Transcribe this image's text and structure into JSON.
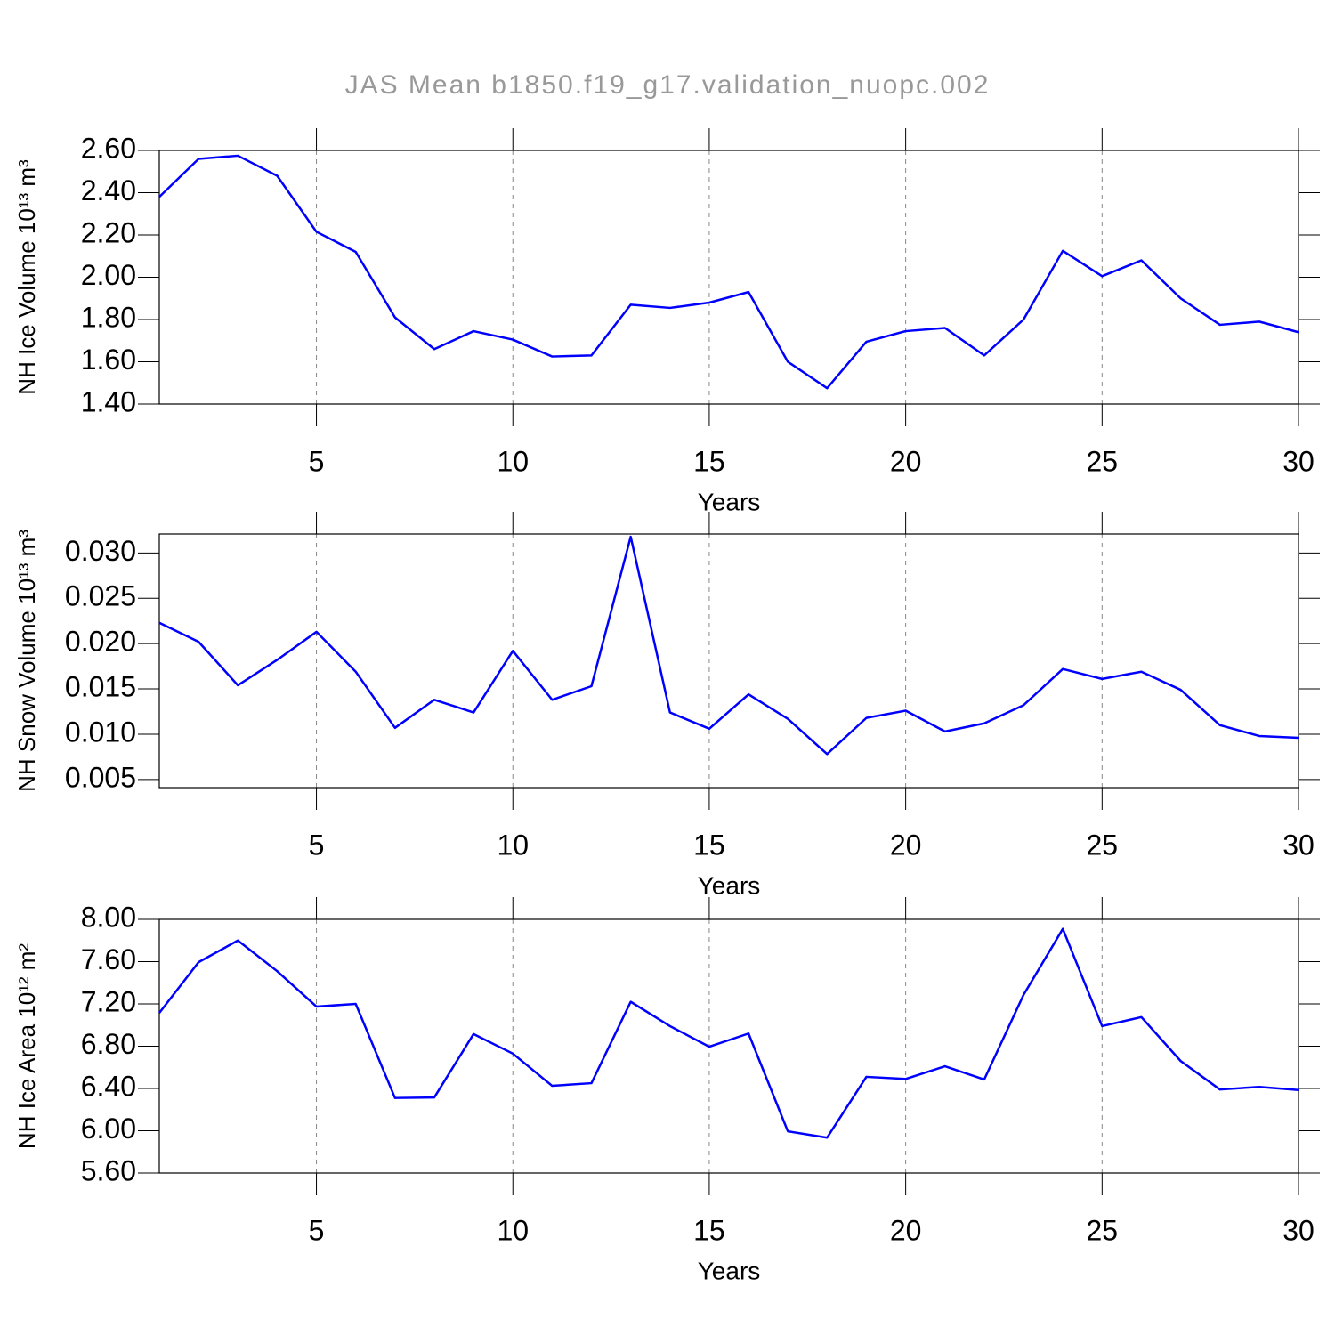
{
  "title": "JAS Mean b1850.f19_g17.validation_nuopc.002",
  "chart_data": [
    {
      "type": "line",
      "ylabel": "NH Ice Volume 10¹³ m³",
      "xlabel": "Years",
      "x": [
        1,
        2,
        3,
        4,
        5,
        6,
        7,
        8,
        9,
        10,
        11,
        12,
        13,
        14,
        15,
        16,
        17,
        18,
        19,
        20,
        21,
        22,
        23,
        24,
        25,
        26,
        27,
        28,
        29,
        30
      ],
      "series": [
        {
          "color": "#0000ff",
          "values": [
            2.38,
            2.56,
            2.575,
            2.48,
            2.215,
            2.12,
            1.81,
            1.66,
            1.745,
            1.705,
            1.625,
            1.63,
            1.87,
            1.855,
            1.88,
            1.93,
            1.6,
            1.475,
            1.695,
            1.745,
            1.76,
            1.63,
            1.8,
            2.125,
            2.005,
            2.08,
            1.9,
            1.775,
            1.79,
            1.74
          ]
        }
      ],
      "xlim": [
        1,
        30
      ],
      "xticks": [
        5,
        10,
        15,
        20,
        25,
        30
      ],
      "ylim": [
        1.4,
        2.6
      ],
      "yticks": [
        {
          "value": 1.4,
          "label": "1.40"
        },
        {
          "value": 1.6,
          "label": "1.60"
        },
        {
          "value": 1.8,
          "label": "1.80"
        },
        {
          "value": 2.0,
          "label": "2.00"
        },
        {
          "value": 2.2,
          "label": "2.20"
        },
        {
          "value": 2.4,
          "label": "2.40"
        },
        {
          "value": 2.6,
          "label": "2.60"
        }
      ],
      "grid": "x"
    },
    {
      "type": "line",
      "ylabel": "NH Snow Volume 10¹³ m³",
      "xlabel": "Years",
      "x": [
        1,
        2,
        3,
        4,
        5,
        6,
        7,
        8,
        9,
        10,
        11,
        12,
        13,
        14,
        15,
        16,
        17,
        18,
        19,
        20,
        21,
        22,
        23,
        24,
        25,
        26,
        27,
        28,
        29,
        30
      ],
      "series": [
        {
          "color": "#0000ff",
          "values": [
            0.0223,
            0.0202,
            0.0154,
            0.0182,
            0.0213,
            0.0169,
            0.0107,
            0.0138,
            0.0124,
            0.0192,
            0.0138,
            0.0153,
            0.0318,
            0.0124,
            0.0106,
            0.0144,
            0.0117,
            0.0078,
            0.0118,
            0.0126,
            0.0103,
            0.0112,
            0.0132,
            0.0172,
            0.0161,
            0.0169,
            0.0149,
            0.011,
            0.0098,
            0.0096
          ]
        }
      ],
      "xlim": [
        1,
        30
      ],
      "xticks": [
        5,
        10,
        15,
        20,
        25,
        30
      ],
      "ylim": [
        0.0041,
        0.0321
      ],
      "yticks": [
        {
          "value": 0.005,
          "label": "0.005"
        },
        {
          "value": 0.01,
          "label": "0.010"
        },
        {
          "value": 0.015,
          "label": "0.015"
        },
        {
          "value": 0.02,
          "label": "0.020"
        },
        {
          "value": 0.025,
          "label": "0.025"
        },
        {
          "value": 0.03,
          "label": "0.030"
        }
      ],
      "grid": "x"
    },
    {
      "type": "line",
      "ylabel": "NH Ice Area 10¹² m²",
      "xlabel": "Years",
      "x": [
        1,
        2,
        3,
        4,
        5,
        6,
        7,
        8,
        9,
        10,
        11,
        12,
        13,
        14,
        15,
        16,
        17,
        18,
        19,
        20,
        21,
        22,
        23,
        24,
        25,
        26,
        27,
        28,
        29,
        30
      ],
      "series": [
        {
          "color": "#0000ff",
          "values": [
            7.115,
            7.595,
            7.8,
            7.51,
            7.175,
            7.2,
            6.31,
            6.315,
            6.915,
            6.73,
            6.425,
            6.45,
            7.22,
            6.99,
            6.795,
            6.92,
            5.995,
            5.935,
            6.51,
            6.49,
            6.61,
            6.485,
            7.285,
            7.91,
            6.99,
            7.075,
            6.66,
            6.39,
            6.415,
            6.385
          ]
        }
      ],
      "xlim": [
        1,
        30
      ],
      "xticks": [
        5,
        10,
        15,
        20,
        25,
        30
      ],
      "ylim": [
        5.6,
        8.0
      ],
      "yticks": [
        {
          "value": 5.6,
          "label": "5.60"
        },
        {
          "value": 6.0,
          "label": "6.00"
        },
        {
          "value": 6.4,
          "label": "6.40"
        },
        {
          "value": 6.8,
          "label": "6.80"
        },
        {
          "value": 7.2,
          "label": "7.20"
        },
        {
          "value": 7.6,
          "label": "7.60"
        },
        {
          "value": 8.0,
          "label": "8.00"
        }
      ],
      "grid": "x"
    }
  ]
}
